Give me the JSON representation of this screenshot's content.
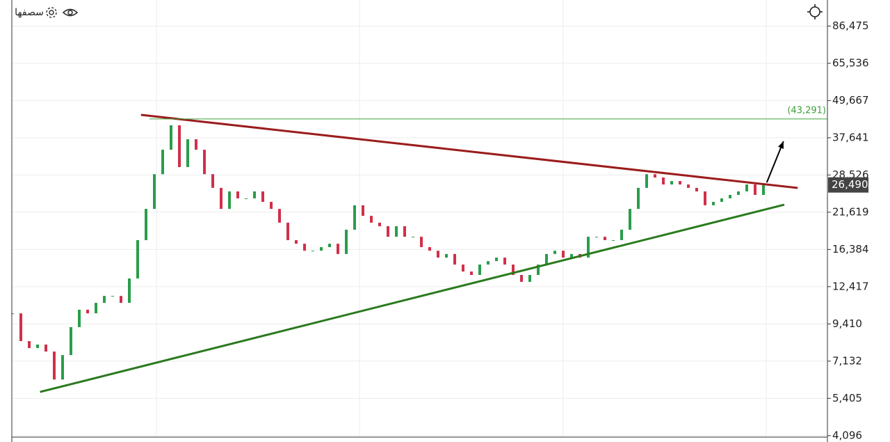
{
  "toolbar": {
    "label": "سصفها"
  },
  "chart_data": {
    "type": "candlestick",
    "log_scale": true,
    "grid": true,
    "ylim": [
      4050,
      105000
    ],
    "yticks": [
      {
        "value": 4096,
        "label": "4,096"
      },
      {
        "value": 5405,
        "label": "5,405"
      },
      {
        "value": 7132,
        "label": "7,132"
      },
      {
        "value": 9410,
        "label": "9,410"
      },
      {
        "value": 12417,
        "label": "12,417"
      },
      {
        "value": 16384,
        "label": "16,384"
      },
      {
        "value": 21619,
        "label": "21,619"
      },
      {
        "value": 28526,
        "label": "28,526"
      },
      {
        "value": 37641,
        "label": "37,641"
      },
      {
        "value": 49667,
        "label": "49,667"
      },
      {
        "value": 65536,
        "label": "65,536"
      },
      {
        "value": 86475,
        "label": "86,475"
      }
    ],
    "colors": {
      "up": "#2a9d4a",
      "down": "#d0304a"
    },
    "values": [
      10180,
      8280,
      7860,
      8070,
      7660,
      6220,
      7460,
      9190,
      10460,
      10180,
      11010,
      11590,
      11590,
      11010,
      13200,
      17560,
      22160,
      28700,
      34430,
      41300,
      30260,
      37230,
      34430,
      28700,
      25920,
      22160,
      25240,
      23970,
      23970,
      25240,
      23350,
      22160,
      20000,
      17560,
      17100,
      16230,
      16230,
      16670,
      17100,
      15840,
      18980,
      22770,
      21040,
      20000,
      19480,
      18010,
      19480,
      18010,
      18010,
      16670,
      16230,
      15420,
      15840,
      14640,
      13900,
      13550,
      14640,
      15020,
      15420,
      14640,
      13550,
      12870,
      13550,
      14640,
      15840,
      16230,
      15420,
      15840,
      15420,
      18010,
      18010,
      17560,
      17560,
      18980,
      22160,
      25920,
      28700,
      28000,
      26580,
      27270,
      26580,
      25920,
      25240,
      22770,
      23350,
      23970,
      24590,
      25240,
      26580,
      24590,
      26490
    ],
    "last_price": {
      "value": 26490,
      "label": "26,490"
    },
    "lines": [
      {
        "color": "#9b1c1c",
        "width": 3,
        "x": [
          15.4,
          94.1
        ],
        "y": [
          44640,
          25900
        ]
      },
      {
        "color": "#2a7a1e",
        "width": 3,
        "x": [
          3.3,
          92.5
        ],
        "y": [
          5670,
          22870
        ]
      },
      {
        "color": "#3aa03a",
        "width": 1,
        "x": [
          16.4,
          97.7
        ],
        "y": [
          43291,
          43291
        ],
        "label": "(43,291)"
      }
    ],
    "arrow": {
      "color": "#000000",
      "x": [
        90.4,
        92.4
      ],
      "y": [
        26990,
        36660
      ]
    }
  }
}
